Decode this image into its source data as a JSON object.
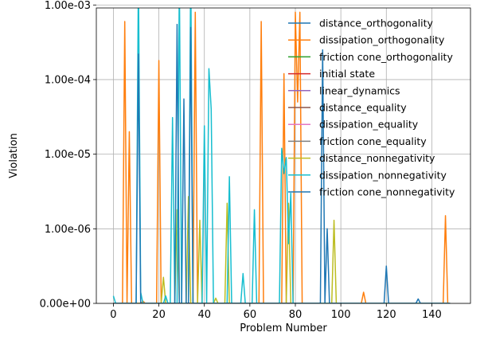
{
  "chart_data": {
    "type": "line",
    "title": "",
    "xlabel": "Problem Number",
    "ylabel": "Violation",
    "xlim": [
      -7.5,
      157
    ],
    "ylim": [
      0,
      3.96
    ],
    "y_scale": "symlog",
    "y_linthresh": 1e-06,
    "grid": true,
    "legend_placement": "top-right",
    "x_ticks": [
      {
        "value": 0,
        "label": "0"
      },
      {
        "value": 20,
        "label": "20"
      },
      {
        "value": 40,
        "label": "40"
      },
      {
        "value": 60,
        "label": "60"
      },
      {
        "value": 80,
        "label": "80"
      },
      {
        "value": 100,
        "label": "100"
      },
      {
        "value": 120,
        "label": "120"
      },
      {
        "value": 140,
        "label": "140"
      }
    ],
    "y_ticks": [
      {
        "value": 0,
        "label": "0.00e+00"
      },
      {
        "value": 1e-06,
        "label": "1.00e-06"
      },
      {
        "value": 1e-05,
        "label": "1.00e-05"
      },
      {
        "value": 0.0001,
        "label": "1.00e-04"
      },
      {
        "value": 0.001,
        "label": "1.00e-03"
      }
    ],
    "series": [
      {
        "name": "distance_orthogonality",
        "color": "#1f77b4",
        "points": [
          [
            0,
            0
          ],
          [
            148,
            0
          ]
        ]
      },
      {
        "name": "dissipation_orthogonality",
        "color": "#ff7f0e",
        "points": [
          [
            0,
            0
          ],
          [
            4,
            0
          ],
          [
            5,
            0.0006
          ],
          [
            6,
            0
          ],
          [
            7,
            2e-05
          ],
          [
            8,
            0
          ],
          [
            12,
            0
          ],
          [
            13,
            3e-08
          ],
          [
            14,
            0
          ],
          [
            19,
            0
          ],
          [
            20,
            0.00018
          ],
          [
            21,
            0
          ],
          [
            35,
            0
          ],
          [
            36,
            0.0008
          ],
          [
            37,
            0
          ],
          [
            64,
            0
          ],
          [
            65,
            0.0006
          ],
          [
            66,
            0
          ],
          [
            74,
            0
          ],
          [
            75,
            0.00012
          ],
          [
            76,
            0
          ],
          [
            79,
            0
          ],
          [
            80,
            0.0008
          ],
          [
            81,
            5e-05
          ],
          [
            82,
            0.0008
          ],
          [
            83,
            0
          ],
          [
            109,
            0
          ],
          [
            110,
            1.5e-07
          ],
          [
            111,
            0
          ],
          [
            145,
            0
          ],
          [
            146,
            1.5e-06
          ],
          [
            147,
            0
          ]
        ]
      },
      {
        "name": "friction cone_orthogonality",
        "color": "#2ca02c",
        "points": [
          [
            0,
            0
          ],
          [
            148,
            0
          ]
        ]
      },
      {
        "name": "initial state",
        "color": "#d62728",
        "points": [
          [
            0,
            0
          ],
          [
            148,
            0
          ]
        ]
      },
      {
        "name": "linear_dynamics",
        "color": "#9467bd",
        "points": [
          [
            0,
            0
          ],
          [
            148,
            0
          ]
        ]
      },
      {
        "name": "distance_equality",
        "color": "#8c564b",
        "points": [
          [
            0,
            0
          ],
          [
            148,
            0
          ]
        ]
      },
      {
        "name": "dissipation_equality",
        "color": "#e377c2",
        "points": [
          [
            0,
            0
          ],
          [
            148,
            0
          ]
        ]
      },
      {
        "name": "friction cone_equality",
        "color": "#7f7f7f",
        "points": [
          [
            0,
            0
          ],
          [
            148,
            0
          ]
        ]
      },
      {
        "name": "distance_nonnegativity",
        "color": "#bcbd22",
        "points": [
          [
            0,
            0
          ],
          [
            21,
            0
          ],
          [
            22,
            3.5e-07
          ],
          [
            23,
            0
          ],
          [
            27,
            0
          ],
          [
            28,
            1.8e-06
          ],
          [
            29,
            0
          ],
          [
            32,
            0
          ],
          [
            33,
            2.7e-06
          ],
          [
            34,
            0
          ],
          [
            37,
            0
          ],
          [
            38,
            1.3e-06
          ],
          [
            39,
            0
          ],
          [
            44,
            0
          ],
          [
            45,
            7e-08
          ],
          [
            46,
            0
          ],
          [
            49,
            0
          ],
          [
            50,
            2.2e-06
          ],
          [
            51,
            0
          ],
          [
            76,
            0
          ],
          [
            77,
            2.2e-06
          ],
          [
            78,
            0
          ],
          [
            96,
            0
          ],
          [
            97,
            1.3e-06
          ],
          [
            98,
            0
          ],
          [
            148,
            0
          ]
        ]
      },
      {
        "name": "dissipation_nonnegativity",
        "color": "#17becf",
        "points": [
          [
            0,
            1e-07
          ],
          [
            1,
            0
          ],
          [
            10,
            0
          ],
          [
            11,
            0.0027
          ],
          [
            12,
            1.5e-07
          ],
          [
            13,
            0
          ],
          [
            22,
            0
          ],
          [
            23,
            1e-07
          ],
          [
            24,
            0
          ],
          [
            25,
            0
          ],
          [
            26,
            3.1e-05
          ],
          [
            27,
            0
          ],
          [
            28,
            0
          ],
          [
            29,
            0.0023
          ],
          [
            30,
            0
          ],
          [
            33,
            0
          ],
          [
            34,
            0.0034
          ],
          [
            35,
            0
          ],
          [
            39,
            0
          ],
          [
            40,
            2.4e-05
          ],
          [
            41,
            0
          ],
          [
            42,
            0.00014
          ],
          [
            43,
            4e-05
          ],
          [
            44,
            0
          ],
          [
            50,
            0
          ],
          [
            51,
            5e-06
          ],
          [
            52,
            0
          ],
          [
            56,
            0
          ],
          [
            57,
            4e-07
          ],
          [
            58,
            0
          ],
          [
            61,
            0
          ],
          [
            62,
            1.8e-06
          ],
          [
            63,
            0
          ],
          [
            73,
            0
          ],
          [
            74,
            1.2e-05
          ],
          [
            75,
            5.5e-06
          ],
          [
            76,
            9e-06
          ],
          [
            77,
            8e-07
          ],
          [
            78,
            3e-06
          ],
          [
            79,
            0
          ],
          [
            148,
            0
          ]
        ]
      },
      {
        "name": "friction cone_nonnegativity",
        "color": "#1f77b4",
        "points": [
          [
            0,
            0
          ],
          [
            10,
            0
          ],
          [
            11,
            0.00022
          ],
          [
            12,
            0
          ],
          [
            27,
            0
          ],
          [
            28,
            0.00055
          ],
          [
            29,
            0
          ],
          [
            30,
            0
          ],
          [
            31,
            5.5e-05
          ],
          [
            32,
            0
          ],
          [
            33,
            0
          ],
          [
            34,
            0.0005
          ],
          [
            35,
            0
          ],
          [
            91,
            0
          ],
          [
            92,
            0.00025
          ],
          [
            93,
            0
          ],
          [
            94,
            1e-06
          ],
          [
            95,
            0
          ],
          [
            119,
            0
          ],
          [
            120,
            5e-07
          ],
          [
            121,
            0
          ],
          [
            133,
            0
          ],
          [
            134,
            6e-08
          ],
          [
            135,
            0
          ],
          [
            148,
            0
          ]
        ]
      }
    ]
  }
}
